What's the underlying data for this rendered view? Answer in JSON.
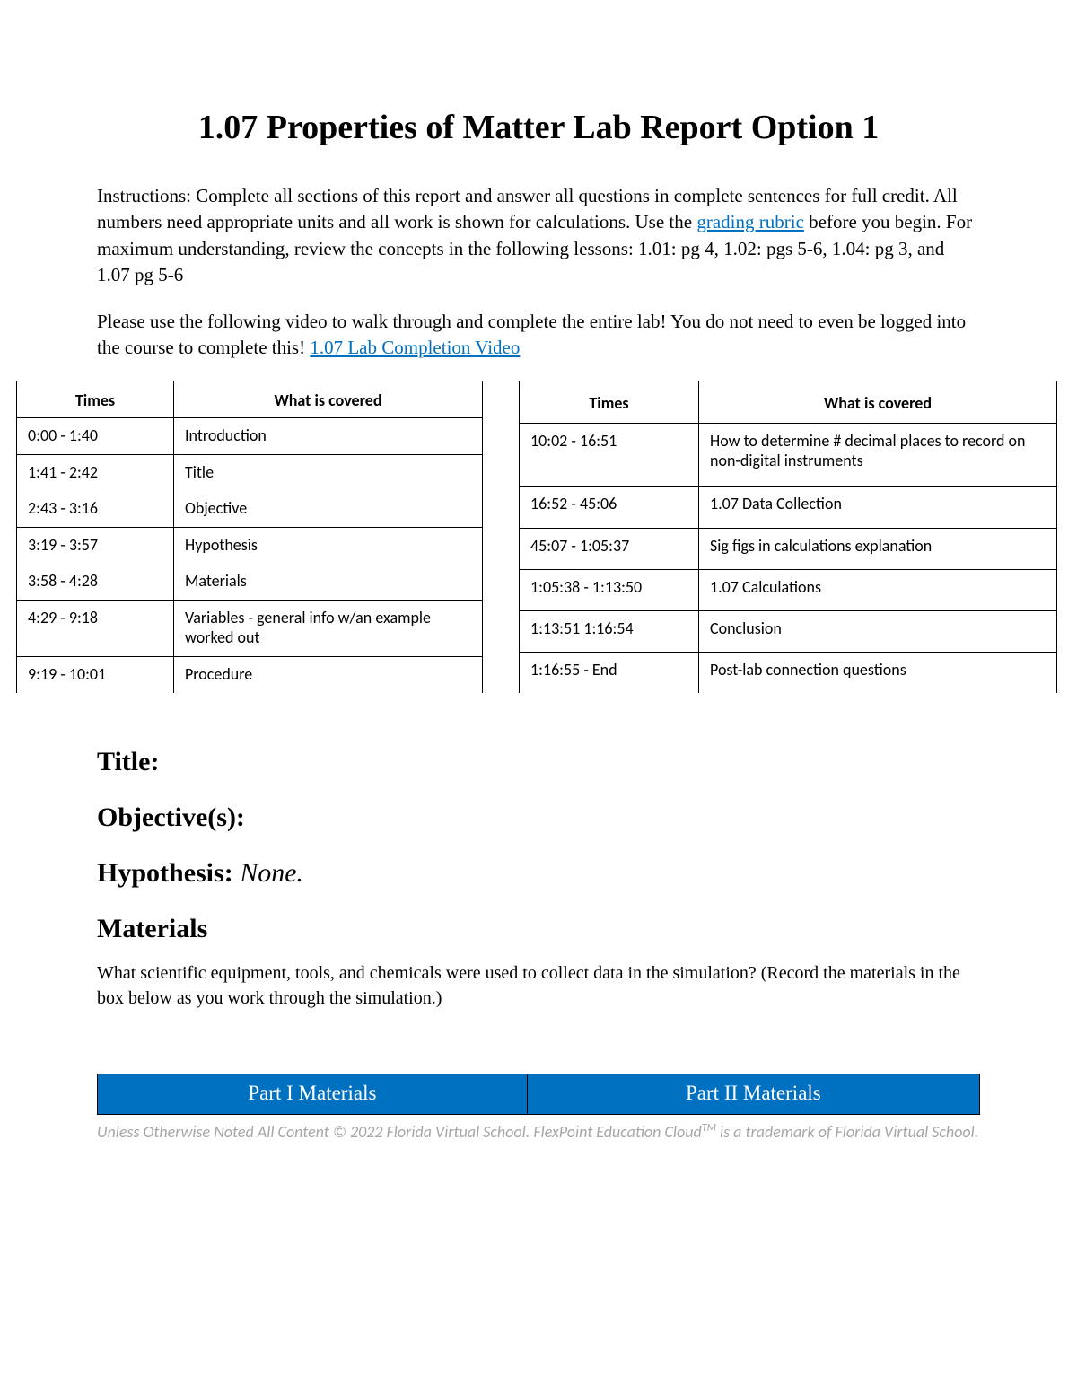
{
  "title": "1.07 Properties of Matter Lab Report Option 1",
  "instructions": {
    "part1a": "Instructions: Complete all sections of this report and answer all questions in complete sentences for full credit.  All numbers need appropriate units and all work is shown for calculations. Use the ",
    "link1": "grading rubric",
    "part1b": " before you begin.  For maximum understanding, review the concepts in the following lessons:  1.01: pg 4, 1.02: pgs 5-6, 1.04: pg 3, and 1.07 pg 5-6",
    "part2a": "Please use the following video to walk through and complete the entire lab!  You do not need to even be logged into the course to complete this!  ",
    "link2": "1.07 Lab Completion Video"
  },
  "table_headers": {
    "times": "Times",
    "covered": "What is covered"
  },
  "left_table": [
    {
      "time": "0:00 - 1:40",
      "text": "Introduction",
      "sep": true
    },
    {
      "time": "1:41 - 2:42",
      "text": "Title",
      "sep": false
    },
    {
      "time": "2:43 - 3:16",
      "text": "Objective",
      "sep": true
    },
    {
      "time": "3:19 - 3:57",
      "text": "Hypothesis",
      "sep": false
    },
    {
      "time": "3:58 - 4:28",
      "text": "Materials",
      "sep": true
    },
    {
      "time": "4:29 - 9:18",
      "text": "Variables - general info w/an example worked out",
      "sep": true
    },
    {
      "time": "9:19 - 10:01",
      "text": "Procedure",
      "sep": false
    }
  ],
  "right_table": [
    {
      "time": "10:02 - 16:51",
      "text": "How to determine # decimal places to record on non-digital instruments",
      "sep": true
    },
    {
      "time": "16:52 - 45:06",
      "text": "1.07 Data Collection",
      "sep": true
    },
    {
      "time": "45:07 - 1:05:37",
      "text": "Sig figs in calculations explanation",
      "sep": true
    },
    {
      "time": "1:05:38 - 1:13:50",
      "text": "1.07 Calculations",
      "sep": true
    },
    {
      "time": "1:13:51   1:16:54",
      "text": "Conclusion",
      "sep": true
    },
    {
      "time": "1:16:55 - End",
      "text": "Post-lab connection questions",
      "sep": false
    }
  ],
  "sections": {
    "title_label": "Title:",
    "objective_label": "Objective(s):",
    "hypothesis_label": "Hypothesis:  ",
    "hypothesis_value": "None.",
    "materials_label": "Materials",
    "materials_prompt": "What scientific equipment, tools, and chemicals were used to collect data in the simulation? (Record the materials in the box below as you work through the simulation.)"
  },
  "materials_table": {
    "col1": "Part I Materials",
    "col2": "Part II Materials"
  },
  "footer": {
    "line": "Unless Otherwise Noted All Content © 2022 Florida Virtual School. FlexPoint Education Cloud",
    "tm": "TM",
    "line2": " is a trademark of Florida Virtual School."
  },
  "colors": {
    "link": "#0070c0",
    "header_bg": "#0070c0",
    "header_text": "#ffffff",
    "footer_text": "#a6a6a6",
    "border": "#000000",
    "background": "#ffffff"
  }
}
